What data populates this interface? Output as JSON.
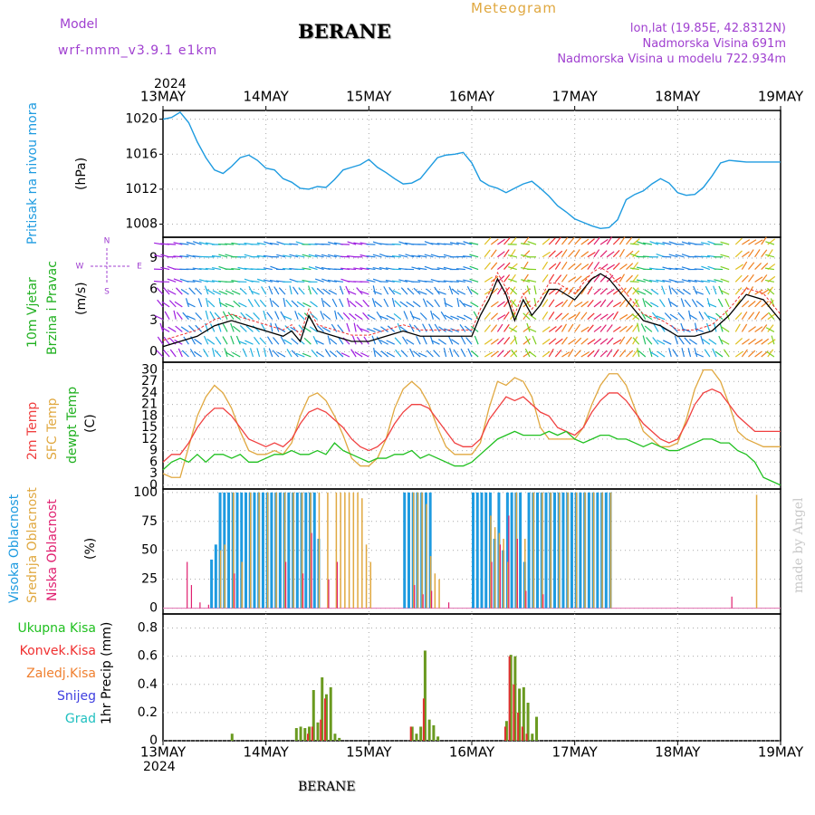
{
  "header": {
    "model_label": "Model",
    "model_name": "wrf-nmm_v3.9.1  e1km",
    "title": "BERANE",
    "meteogram": "Meteogram",
    "lonlat": "lon,lat (19.85E, 42.8312N)",
    "elev": "Nadmorska Visina 691m",
    "elev_model": "Nadmorska Visina u modelu 722.934m"
  },
  "time_axis": {
    "year": "2024",
    "labels": [
      "13MAY",
      "14MAY",
      "15MAY",
      "16MAY",
      "17MAY",
      "18MAY",
      "19MAY"
    ]
  },
  "panels": {
    "pressure": {
      "label": "Pritisak na nivou mora",
      "unit": "(hPa)",
      "ticks": [
        "1020",
        "1016",
        "1012",
        "1008"
      ],
      "color": "#1e9be0"
    },
    "wind": {
      "label1": "10m Vjetar",
      "label2": "Brzina i Pravac",
      "unit": "(m/s)",
      "ticks": [
        "9",
        "6",
        "3",
        "0"
      ],
      "compass": {
        "n": "N",
        "s": "S",
        "e": "E",
        "w": "W"
      }
    },
    "temp": {
      "l1": "2m Temp",
      "l2": "SFC Temp",
      "l3": "dewpt Temp",
      "unit": "(C)",
      "ticks": [
        "30",
        "27",
        "24",
        "21",
        "18",
        "15",
        "12",
        "9",
        "6",
        "3",
        "0"
      ]
    },
    "cloud": {
      "l1": "Visoka Oblacnost",
      "l2": "Srednja Oblacnost",
      "l3": "Niska Oblacnost",
      "unit": "(%)",
      "ticks": [
        "100",
        "75",
        "50",
        "25",
        "0"
      ]
    },
    "precip": {
      "unit": "1hr Precip (mm)",
      "ticks": [
        "0.8",
        "0.6",
        "0.4",
        "0.2",
        "0"
      ],
      "legend": [
        {
          "name": "Ukupna Kisa",
          "color": "#20c020"
        },
        {
          "name": "Konvek.Kisa",
          "color": "#f03030"
        },
        {
          "name": "Zaledj.Kisa",
          "color": "#f08030"
        },
        {
          "name": "Snijeg",
          "color": "#4040e0"
        },
        {
          "name": "Grad",
          "color": "#20c0c0"
        }
      ]
    }
  },
  "footer": {
    "station": "BERANE",
    "credit": "made by Angel"
  },
  "colors": {
    "pressure": "#1e9be0",
    "t2m": "#f04040",
    "tsfc": "#e0a840",
    "dew": "#20c020",
    "wind_speed": "#000000",
    "wind_gust": "#f03030",
    "high": "#1e9be0",
    "mid": "#e0a840",
    "low": "#e02070",
    "precip_total": "#6a9a20",
    "precip_conv": "#e03030"
  },
  "chart_data": [
    {
      "type": "line",
      "name": "Pritisak na nivou mora",
      "unit": "hPa",
      "x_range": [
        0,
        144
      ],
      "ylim": [
        1006.5,
        1021
      ],
      "x": [
        0,
        2,
        4,
        6,
        8,
        10,
        12,
        14,
        16,
        18,
        20,
        22,
        24,
        26,
        28,
        30,
        32,
        34,
        36,
        38,
        40,
        42,
        44,
        46,
        48,
        50,
        52,
        54,
        56,
        58,
        60,
        62,
        64,
        66,
        68,
        70,
        72,
        74,
        76,
        78,
        80,
        82,
        84,
        86,
        88,
        90,
        92,
        94,
        96,
        98,
        100,
        102,
        104,
        106,
        108,
        110,
        112,
        114,
        116,
        118,
        120,
        122,
        124,
        126,
        128,
        130,
        132,
        134,
        136,
        138,
        140,
        142,
        144
      ],
      "y": [
        1020,
        1020.2,
        1020.8,
        1019.6,
        1017.4,
        1015.6,
        1014.2,
        1013.8,
        1014.6,
        1015.6,
        1015.9,
        1015.3,
        1014.4,
        1014.2,
        1013.2,
        1012.8,
        1012.1,
        1012,
        1012.3,
        1012.2,
        1013.1,
        1014.2,
        1014.5,
        1014.8,
        1015.4,
        1014.5,
        1013.9,
        1013.2,
        1012.6,
        1012.7,
        1013.2,
        1014.4,
        1015.6,
        1015.9,
        1016,
        1016.2,
        1015,
        1013,
        1012.4,
        1012.1,
        1011.6,
        1012.1,
        1012.6,
        1012.9,
        1012.1,
        1011.2,
        1010.1,
        1009.4,
        1008.6,
        1008.2,
        1007.8,
        1007.5,
        1007.6,
        1008.5,
        1010.8,
        1011.4,
        1011.8,
        1012.6,
        1013.2,
        1012.7,
        1011.6,
        1011.3,
        1011.4,
        1012.2,
        1013.5,
        1015,
        1015.3,
        1015.2,
        1015.1,
        1015.1,
        1015.1,
        1015.1,
        1015.1
      ]
    },
    {
      "type": "line",
      "name": "2m Temp",
      "unit": "C",
      "x_range": [
        0,
        144
      ],
      "ylim": [
        -1,
        32
      ],
      "x": [
        0,
        2,
        4,
        6,
        8,
        10,
        12,
        14,
        16,
        18,
        20,
        22,
        24,
        26,
        28,
        30,
        32,
        34,
        36,
        38,
        40,
        42,
        44,
        46,
        48,
        50,
        52,
        54,
        56,
        58,
        60,
        62,
        64,
        66,
        68,
        70,
        72,
        74,
        76,
        78,
        80,
        82,
        84,
        86,
        88,
        90,
        92,
        94,
        96,
        98,
        100,
        102,
        104,
        106,
        108,
        110,
        112,
        114,
        116,
        118,
        120,
        122,
        124,
        126,
        128,
        130,
        132,
        134,
        136,
        138,
        140,
        142,
        144
      ],
      "y": [
        6,
        8,
        8,
        11,
        15,
        18,
        20,
        20,
        18,
        15,
        12,
        11,
        10,
        11,
        10,
        12,
        16,
        19,
        20,
        19,
        17,
        15,
        12,
        10,
        9,
        10,
        12,
        16,
        19,
        21,
        21,
        20,
        17,
        14,
        11,
        10,
        10,
        12,
        17,
        20,
        23,
        22,
        23,
        21,
        19,
        18,
        15,
        14,
        13,
        15,
        19,
        22,
        24,
        24,
        22,
        19,
        16,
        14,
        12,
        11,
        12,
        16,
        21,
        24,
        25,
        24,
        21,
        18,
        16,
        14,
        14,
        14,
        14
      ]
    },
    {
      "type": "line",
      "name": "SFC Temp",
      "unit": "C",
      "x_range": [
        0,
        144
      ],
      "ylim": [
        -1,
        32
      ],
      "x": [
        0,
        2,
        4,
        6,
        8,
        10,
        12,
        14,
        16,
        18,
        20,
        22,
        24,
        26,
        28,
        30,
        32,
        34,
        36,
        38,
        40,
        42,
        44,
        46,
        48,
        50,
        52,
        54,
        56,
        58,
        60,
        62,
        64,
        66,
        68,
        70,
        72,
        74,
        76,
        78,
        80,
        82,
        84,
        86,
        88,
        90,
        92,
        94,
        96,
        98,
        100,
        102,
        104,
        106,
        108,
        110,
        112,
        114,
        116,
        118,
        120,
        122,
        124,
        126,
        128,
        130,
        132,
        134,
        136,
        138,
        140,
        142,
        144
      ],
      "y": [
        3,
        2,
        2,
        10,
        18,
        23,
        26,
        24,
        20,
        14,
        9,
        8,
        8,
        9,
        8,
        11,
        18,
        23,
        24,
        22,
        18,
        13,
        7,
        5,
        5,
        7,
        12,
        20,
        25,
        27,
        25,
        21,
        15,
        10,
        8,
        8,
        8,
        11,
        20,
        27,
        26,
        28,
        27,
        23,
        15,
        12,
        12,
        12,
        12,
        15,
        21,
        26,
        29,
        29,
        26,
        20,
        14,
        12,
        10,
        10,
        11,
        17,
        25,
        30,
        30,
        27,
        21,
        14,
        12,
        11,
        10,
        10,
        10
      ]
    },
    {
      "type": "line",
      "name": "dewpt Temp",
      "unit": "C",
      "x_range": [
        0,
        144
      ],
      "ylim": [
        -1,
        32
      ],
      "x": [
        0,
        2,
        4,
        6,
        8,
        10,
        12,
        14,
        16,
        18,
        20,
        22,
        24,
        26,
        28,
        30,
        32,
        34,
        36,
        38,
        40,
        42,
        44,
        46,
        48,
        50,
        52,
        54,
        56,
        58,
        60,
        62,
        64,
        66,
        68,
        70,
        72,
        74,
        76,
        78,
        80,
        82,
        84,
        86,
        88,
        90,
        92,
        94,
        96,
        98,
        100,
        102,
        104,
        106,
        108,
        110,
        112,
        114,
        116,
        118,
        120,
        122,
        124,
        126,
        128,
        130,
        132,
        134,
        136,
        138,
        140,
        142,
        144
      ],
      "y": [
        4,
        6,
        7,
        6,
        8,
        6,
        8,
        8,
        7,
        8,
        6,
        6,
        7,
        8,
        8,
        9,
        8,
        8,
        9,
        8,
        11,
        9,
        8,
        7,
        6,
        7,
        7,
        8,
        8,
        9,
        7,
        8,
        7,
        6,
        5,
        5,
        6,
        8,
        10,
        12,
        13,
        14,
        13,
        13,
        13,
        14,
        13,
        14,
        12,
        11,
        12,
        13,
        13,
        12,
        12,
        11,
        10,
        11,
        10,
        9,
        9,
        10,
        11,
        12,
        12,
        11,
        11,
        9,
        8,
        6,
        2,
        1,
        0
      ]
    },
    {
      "type": "bar",
      "name": "Visoka Oblacnost",
      "unit": "%",
      "x_range": [
        0,
        144
      ],
      "ylim": [
        0,
        100
      ],
      "x": [
        11,
        12,
        13,
        14,
        15,
        16,
        17,
        18,
        19,
        20,
        21,
        22,
        23,
        24,
        25,
        26,
        27,
        28,
        29,
        30,
        31,
        32,
        33,
        34,
        35,
        36,
        56,
        57,
        58,
        59,
        60,
        61,
        62,
        72,
        73,
        74,
        75,
        76,
        77,
        78,
        79,
        80,
        81,
        82,
        83,
        84,
        85,
        86,
        87,
        88,
        89,
        90,
        91,
        92,
        93,
        94,
        95,
        96,
        97,
        98,
        99,
        100,
        101,
        102,
        103,
        104
      ],
      "values": [
        42,
        55,
        100,
        100,
        100,
        100,
        100,
        100,
        100,
        100,
        100,
        100,
        100,
        100,
        100,
        100,
        100,
        100,
        100,
        100,
        100,
        100,
        100,
        100,
        100,
        60,
        100,
        100,
        100,
        100,
        100,
        100,
        100,
        100,
        100,
        100,
        100,
        100,
        60,
        100,
        50,
        100,
        100,
        100,
        100,
        40,
        100,
        100,
        100,
        100,
        100,
        100,
        100,
        100,
        100,
        100,
        100,
        100,
        100,
        100,
        100,
        100,
        100,
        100,
        100,
        100
      ]
    },
    {
      "type": "bar",
      "name": "Srednja Oblacnost",
      "unit": "%",
      "x_range": [
        0,
        144
      ],
      "ylim": [
        0,
        100
      ],
      "x": [
        13,
        14,
        16,
        18,
        20,
        22,
        24,
        26,
        28,
        30,
        32,
        34,
        36,
        38,
        40,
        41,
        42,
        43,
        44,
        45,
        46,
        47,
        48,
        58,
        59,
        60,
        61,
        62,
        63,
        64,
        76,
        77,
        78,
        79,
        80,
        82,
        84,
        86,
        88,
        90,
        92,
        94,
        96,
        98,
        100,
        102,
        104,
        138
      ],
      "values": [
        50,
        55,
        100,
        40,
        100,
        100,
        100,
        100,
        100,
        100,
        100,
        100,
        100,
        100,
        100,
        100,
        100,
        100,
        100,
        100,
        95,
        55,
        40,
        100,
        100,
        100,
        90,
        45,
        30,
        25,
        80,
        70,
        65,
        60,
        40,
        100,
        60,
        100,
        100,
        100,
        100,
        100,
        100,
        100,
        100,
        100,
        100,
        98
      ]
    },
    {
      "type": "bar",
      "name": "Niska Oblacnost",
      "unit": "%",
      "x_range": [
        0,
        144
      ],
      "ylim": [
        0,
        100
      ],
      "x": [
        5,
        6,
        8,
        10,
        16,
        28,
        32,
        34,
        38,
        40,
        58,
        60,
        62,
        66,
        76,
        78,
        80,
        82,
        84,
        88,
        132
      ],
      "values": [
        40,
        20,
        5,
        3,
        30,
        40,
        30,
        65,
        25,
        40,
        20,
        12,
        15,
        5,
        40,
        55,
        80,
        60,
        15,
        12,
        10
      ]
    },
    {
      "type": "bar",
      "name": "Ukupna Kisa",
      "unit": "mm",
      "x_range": [
        0,
        144
      ],
      "ylim": [
        0,
        0.9
      ],
      "x": [
        16,
        31,
        32,
        33,
        34,
        35,
        36,
        37,
        38,
        39,
        40,
        41,
        58,
        59,
        60,
        61,
        62,
        63,
        64,
        80,
        81,
        82,
        83,
        84,
        85,
        86,
        87
      ],
      "values": [
        0.05,
        0.09,
        0.1,
        0.09,
        0.1,
        0.36,
        0.13,
        0.45,
        0.33,
        0.38,
        0.05,
        0.02,
        0.1,
        0.05,
        0.1,
        0.64,
        0.15,
        0.11,
        0.03,
        0.14,
        0.61,
        0.6,
        0.37,
        0.38,
        0.27,
        0.05,
        0.17
      ]
    },
    {
      "type": "bar",
      "name": "Konvek.Kisa",
      "unit": "mm",
      "x_range": [
        0,
        144
      ],
      "ylim": [
        0,
        0.9
      ],
      "x": [
        34,
        35,
        37,
        38,
        58,
        61,
        80,
        81,
        82,
        83,
        84,
        85
      ],
      "values": [
        0.05,
        0.1,
        0.15,
        0.3,
        0.1,
        0.3,
        0.1,
        0.6,
        0.4,
        0.2,
        0.1,
        0.05
      ]
    },
    {
      "type": "line",
      "name": "10m Vjetar Brzina",
      "unit": "m/s",
      "x_range": [
        0,
        144
      ],
      "ylim": [
        -1,
        11
      ],
      "x": [
        0,
        4,
        8,
        12,
        16,
        20,
        24,
        28,
        30,
        32,
        34,
        36,
        40,
        44,
        48,
        52,
        56,
        60,
        64,
        68,
        72,
        74,
        76,
        78,
        80,
        82,
        84,
        86,
        88,
        90,
        92,
        94,
        96,
        98,
        100,
        102,
        104,
        106,
        108,
        112,
        116,
        120,
        124,
        128,
        132,
        136,
        140,
        144
      ],
      "y": [
        0.5,
        1,
        1.5,
        2.5,
        3,
        2.5,
        2,
        1.5,
        2,
        1,
        3.5,
        2,
        1.5,
        1,
        1,
        1.5,
        2,
        1.5,
        1.5,
        1.5,
        1.5,
        3.5,
        5,
        7,
        5.5,
        3,
        5,
        3.5,
        4.5,
        6,
        6,
        5.5,
        5,
        6,
        7,
        7.5,
        7,
        6,
        5,
        3,
        2.5,
        1.5,
        1.5,
        2,
        3.5,
        5.5,
        5,
        3
      ]
    }
  ]
}
